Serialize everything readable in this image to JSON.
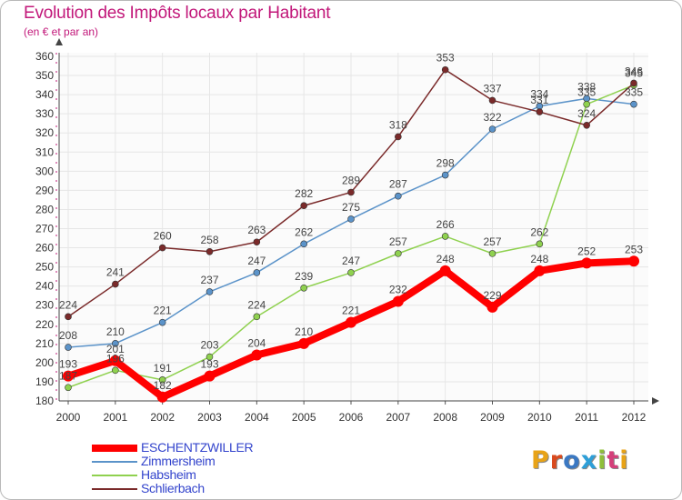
{
  "header": {
    "title": "Evolution des Impôts locaux par Habitant",
    "subtitle": "(en € et par an)"
  },
  "logo": {
    "text": "Proxiti",
    "colors": [
      "#e8a317",
      "#d94a1e",
      "#3b78c2",
      "#2e9fd8",
      "#8fbf3a",
      "#d43f7a",
      "#e8a317"
    ]
  },
  "colors": {
    "text_accent": "#c2187a",
    "legend_text": "#3344cc",
    "grid": "#e6e6e6"
  },
  "chart_data": {
    "type": "line",
    "title": "Evolution des Impôts locaux par Habitant",
    "subtitle": "(en € et par an)",
    "xlabel": "",
    "ylabel": "",
    "x": [
      "2000",
      "2001",
      "2002",
      "2003",
      "2004",
      "2005",
      "2006",
      "2007",
      "2008",
      "2009",
      "2010",
      "2011",
      "2012"
    ],
    "ylim": [
      180,
      360
    ],
    "yticks": [
      180,
      190,
      200,
      210,
      220,
      230,
      240,
      250,
      260,
      270,
      280,
      290,
      300,
      310,
      320,
      330,
      340,
      350,
      360
    ],
    "grid": true,
    "legend_position": "bottom-left",
    "series": [
      {
        "name": "ESCHENTZWILLER",
        "color": "#ff0000",
        "values": [
          193,
          201,
          182,
          193,
          204,
          210,
          221,
          232,
          248,
          229,
          248,
          252,
          253
        ]
      },
      {
        "name": "Zimmersheim",
        "color": "#5b93c9",
        "values": [
          208,
          210,
          221,
          237,
          247,
          262,
          275,
          287,
          298,
          322,
          334,
          338,
          335
        ]
      },
      {
        "name": "Habsheim",
        "color": "#8fd14f",
        "values": [
          187,
          196,
          191,
          203,
          224,
          239,
          247,
          257,
          266,
          257,
          262,
          335,
          345
        ]
      },
      {
        "name": "Schlierbach",
        "color": "#7a2a2a",
        "values": [
          224,
          241,
          260,
          258,
          263,
          282,
          289,
          318,
          353,
          337,
          331,
          324,
          346
        ]
      }
    ]
  }
}
